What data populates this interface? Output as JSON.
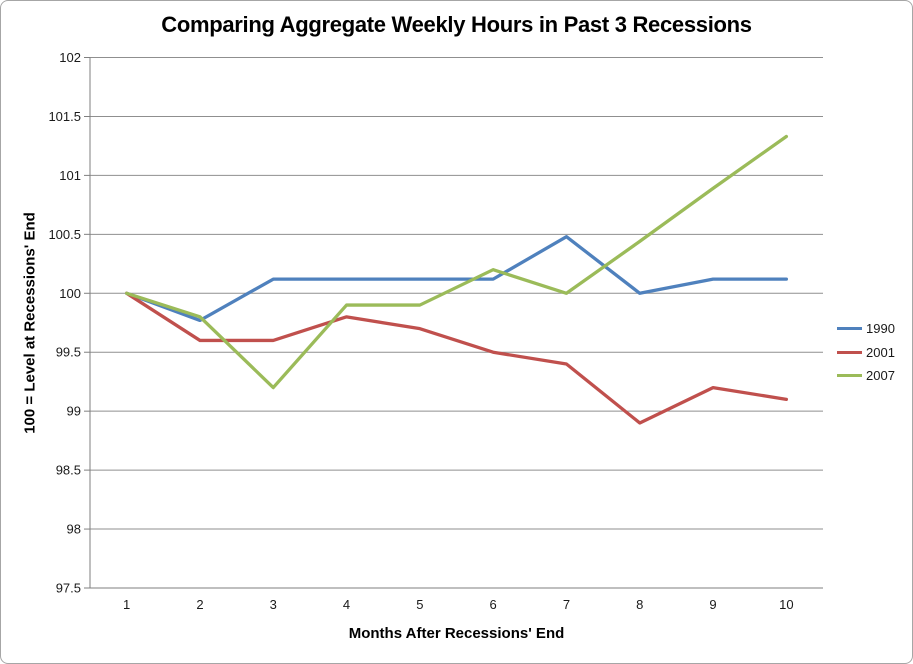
{
  "chart_title": "Comparing Aggregate Weekly Hours in Past 3 Recessions",
  "chart_data": {
    "type": "line",
    "title": "Comparing Aggregate Weekly Hours in Past 3 Recessions",
    "xlabel": "Months After Recessions' End",
    "ylabel": "100 = Level at Recessions' End",
    "categories": [
      "1",
      "2",
      "3",
      "4",
      "5",
      "6",
      "7",
      "8",
      "9",
      "10"
    ],
    "series": [
      {
        "name": "1990",
        "color": "#4F81BD",
        "values": [
          100,
          99.77,
          100.12,
          100.12,
          100.12,
          100.12,
          100.48,
          100,
          100.12,
          100.12
        ]
      },
      {
        "name": "2001",
        "color": "#C0504D",
        "values": [
          100,
          99.6,
          99.6,
          99.8,
          99.7,
          99.5,
          99.4,
          98.9,
          99.2,
          99.1
        ]
      },
      {
        "name": "2007",
        "color": "#9BBB59",
        "values": [
          100,
          99.8,
          99.2,
          99.9,
          99.9,
          100.2,
          100,
          100.44,
          100.89,
          101.33
        ]
      }
    ],
    "ylim": [
      97.5,
      102
    ],
    "y_step": 0.5,
    "y_tick_labels": [
      "102",
      "101.5",
      "101",
      "100.5",
      "100",
      "99.5",
      "99",
      "98.5",
      "98",
      "97.5"
    ],
    "grid": true,
    "legend_position": "right",
    "grid_color": "#8f8f8f",
    "axis_color": "#7f7f7f",
    "tick_text_color": "#1a1a1a"
  }
}
